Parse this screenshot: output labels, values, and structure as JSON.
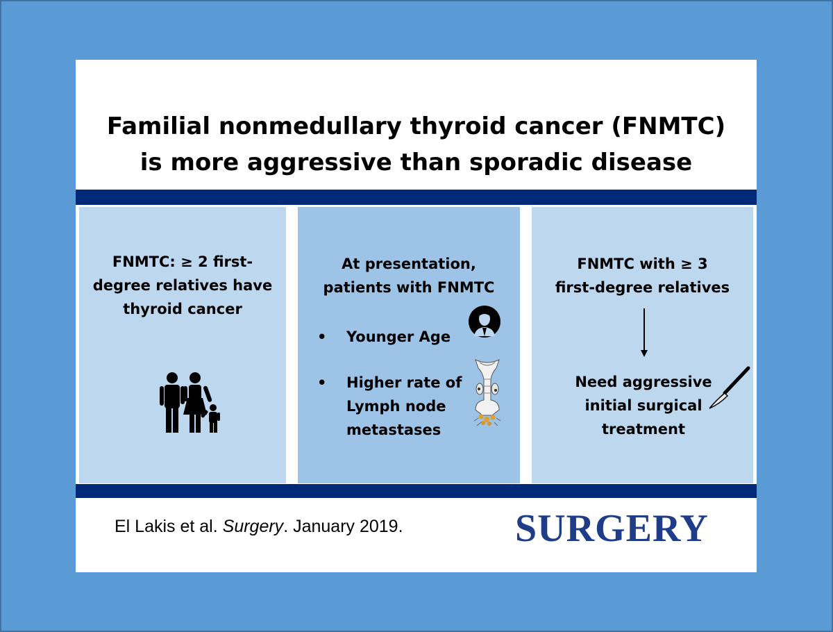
{
  "title": {
    "line1": "Familial nonmedullary thyroid cancer (FNMTC)",
    "line2": "is more aggressive than sporadic disease"
  },
  "panels": {
    "left": {
      "lines": [
        "FNMTC: ≥ 2 first-",
        "degree relatives have",
        "thyroid cancer"
      ],
      "icon": "family-icon"
    },
    "middle": {
      "lines": [
        "At presentation,",
        "patients with FNMTC"
      ],
      "bullet_char": "•",
      "bullets": [
        {
          "lines": [
            "Younger Age"
          ],
          "icon": "young-person-icon"
        },
        {
          "lines": [
            "Higher rate of",
            "Lymph node",
            "metastases"
          ],
          "icon": "thyroid-lymph-node-icon"
        }
      ]
    },
    "right": {
      "lines": [
        "FNMTC with ≥ 3",
        "first-degree relatives"
      ],
      "arrow_icon": "arrow-down-icon",
      "conclusion_lines": [
        "Need aggressive",
        "initial surgical",
        "treatment"
      ],
      "icon": "scalpel-icon"
    }
  },
  "footer": {
    "citation_prefix": "El Lakis et al. ",
    "citation_journal": "Surgery",
    "citation_suffix": ". January 2019.",
    "logo_text": "SURGERY"
  },
  "colors": {
    "background": "#5b9bd5",
    "bar": "#002a78",
    "panel_light": "#bdd7ee",
    "panel_mid": "#9dc3e6",
    "logo": "#1f3c88"
  }
}
